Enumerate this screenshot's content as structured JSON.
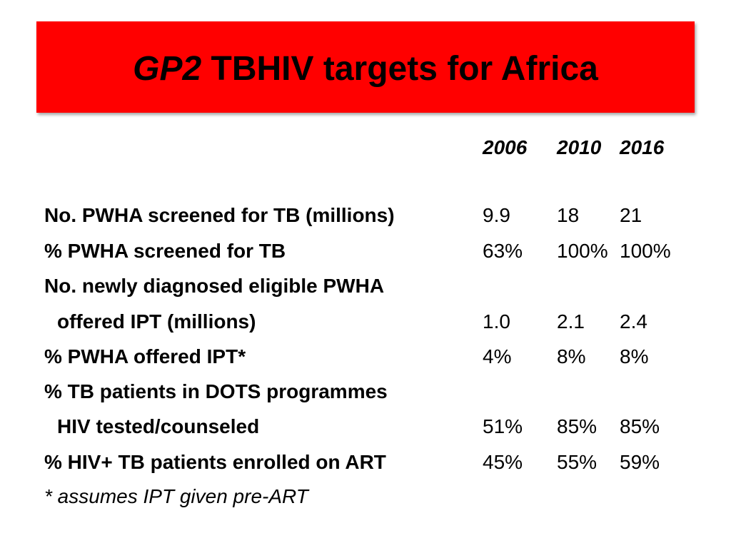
{
  "title": {
    "italic_part": "GP2",
    "rest": " TBHIV targets for Africa"
  },
  "table": {
    "years": [
      "2006",
      "2010",
      "2016"
    ],
    "rows": [
      {
        "label": "No. PWHA screened for TB (millions)",
        "values": [
          "9.9",
          "18",
          "21"
        ]
      },
      {
        "label": "% PWHA screened for TB",
        "values": [
          "63%",
          "100%",
          "100%"
        ]
      },
      {
        "label": "No. newly diagnosed eligible PWHA",
        "values": [
          "",
          "",
          ""
        ]
      },
      {
        "label": "offered IPT (millions)",
        "values": [
          "1.0",
          "2.1",
          "2.4"
        ]
      },
      {
        "label": "% PWHA offered IPT*",
        "values": [
          "4%",
          "8%",
          "8%"
        ]
      },
      {
        "label": "% TB patients in DOTS programmes",
        "values": [
          "",
          "",
          ""
        ]
      },
      {
        "label": "HIV tested/counseled",
        "values": [
          "51%",
          "85%",
          "85%"
        ]
      },
      {
        "label": "% HIV+ TB patients enrolled on ART",
        "values": [
          "45%",
          "55%",
          "59%"
        ]
      }
    ]
  },
  "footnote": "* assumes IPT given pre-ART",
  "colors": {
    "banner": "#ff0000",
    "text": "#000000",
    "background": "#ffffff"
  }
}
